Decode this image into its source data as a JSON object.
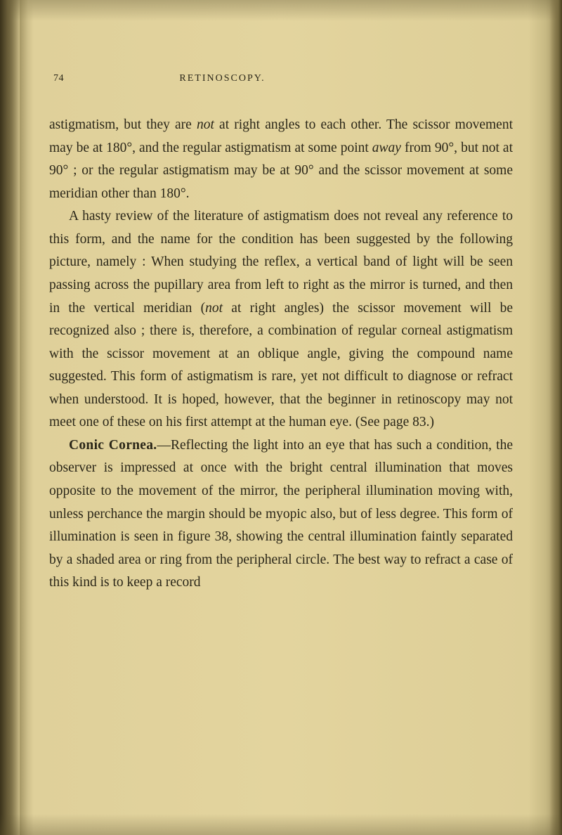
{
  "page": {
    "number": "74",
    "running_title": "RETINOSCOPY."
  },
  "content": {
    "p1_pre": "astigmatism, but they are ",
    "p1_not": "not",
    "p1_mid1": " at right angles to each other. The scissor movement may be at 180°, and the regular astigmatism at some point ",
    "p1_away": "away",
    "p1_mid2": " from 90°, but not at 90° ; or the regular astigmatism may be at 90° and the scissor movement at some meridian other than 180°.",
    "p2_pre": "A hasty review of the literature of astigmatism does not reveal any reference to this form, and the name for the condition has been suggested by the following picture, namely : When studying the reflex, a vertical band of light will be seen passing across the pupillary area from left to right as the mirror is turned, and then in the vertical meridian (",
    "p2_not": "not",
    "p2_post": " at right angles) the scissor movement will be recognized also ; there is, therefore, a combination of regular corneal astigmatism with the scissor movement at an oblique angle, giving the compound name suggested. This form of astigmatism is rare, yet not difficult to diagnose or refract when understood. It is hoped, however, that the beginner in retinoscopy may not meet one of these on his first attempt at the human eye. (See page 83.)",
    "p3_head": "Conic Cornea.",
    "p3_body": "—Reflecting the light into an eye that has such a condition, the observer is impressed at once with the bright central illumination that moves opposite to the movement of the mirror, the peripheral illumination moving with, unless perchance the margin should be myopic also, but of less degree. This form of illumination is seen in figure 38, showing the central illumination faintly separated by a shaded area or ring from the peripheral circle. The best way to refract a case of this kind is to keep a record"
  },
  "style": {
    "page_bg": "#e3d49e",
    "text_color": "#2a2618",
    "body_fontsize": 19.5,
    "line_height": 1.67,
    "header_fontsize": 14
  }
}
